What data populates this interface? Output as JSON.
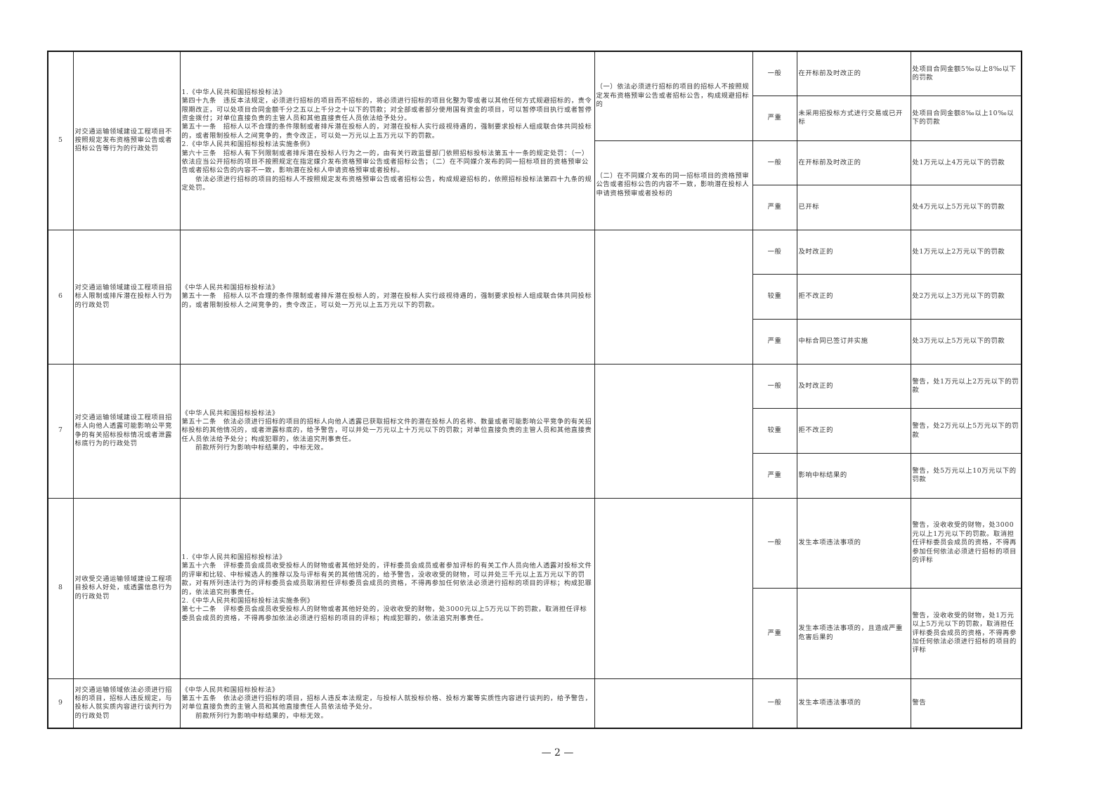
{
  "rows": [
    {
      "no": "5",
      "item": "对交通运输领域建设工程项目不按照规定发布资格预审公告或者招标公告等行为的行政处罚",
      "basis": [
        "1.《中华人民共和国招标投标法》",
        "第四十九条　违反本法规定，必须进行招标的项目而不招标的，将必须进行招标的项目化整为零或者以其他任何方式规避招标的，责令限期改正，可以处项目合同金额千分之五以上千分之十以下的罚款；对全部或者部分使用国有资金的项目，可以暂停项目执行或者暂停资金拨付；对单位直接负责的主管人员和其他直接责任人员依法给予处分。",
        "第五十一条　招标人以不合理的条件限制或者排斥潜在投标人的，对潜在投标人实行歧视待遇的，强制要求投标人组成联合体共同投标的，或者限制投标人之间竞争的，责令改正，可以处一万元以上五万元以下的罚款。",
        "2.《中华人民共和国招标投标法实施条例》",
        "第六十三条　招标人有下列限制或者排斥潜在投标人行为之一的，由有关行政监督部门依照招标投标法第五十一条的规定处罚：（一）依法应当公开招标的项目不按照规定在指定媒介发布资格预审公告或者招标公告；（二）在不同媒介发布的同一招标项目的资格预审公告或者招标公告的内容不一致，影响潜在投标人申请资格预审或者投标。",
        "　　依法必须进行招标的项目的招标人不按照规定发布资格预审公告或者招标公告，构成规避招标的，依照招标投标法第四十九条的规定处罚。"
      ],
      "circumstances": [
        {
          "text": "（一）依法必须进行招标的项目的招标人不按照规定发布资格预审公告或者招标公告，构成规避招标的",
          "levels": [
            {
              "level": "一般",
              "situation": "在开标前及时改正的",
              "penalty": "处项目合同金额5‰以上8‰以下的罚款"
            },
            {
              "level": "严重",
              "situation": "未采用招投标方式进行交易或已开标",
              "penalty": "处项目合同金额8‰以上10‰以下的罚款"
            }
          ]
        },
        {
          "text": "（二）在不同媒介发布的同一招标项目的资格预审公告或者招标公告的内容不一致，影响潜在投标人申请资格预审或者投标的",
          "levels": [
            {
              "level": "一般",
              "situation": "在开标前及时改正的",
              "penalty": "处1万元以上4万元以下的罚款"
            },
            {
              "level": "严重",
              "situation": "已开标",
              "penalty": "处4万元以上5万元以下的罚款"
            }
          ]
        }
      ]
    },
    {
      "no": "6",
      "item": "对交通运输领域建设工程项目招标人限制或排斥潜在投标人行为的行政处罚",
      "basis": [
        "《中华人民共和国招标投标法》",
        "第五十一条　招标人以不合理的条件限制或者排斥潜在投标人的，对潜在投标人实行歧视待遇的，强制要求投标人组成联合体共同投标的，或者限制投标人之间竞争的，责令改正，可以处一万元以上五万元以下的罚款。"
      ],
      "circumstances": [
        {
          "text": "",
          "levels": [
            {
              "level": "一般",
              "situation": "及时改正的",
              "penalty": "处1万元以上2万元以下的罚款"
            },
            {
              "level": "较重",
              "situation": "拒不改正的",
              "penalty": "处2万元以上3万元以下的罚款"
            },
            {
              "level": "严重",
              "situation": "中标合同已签订并实施",
              "penalty": "处3万元以上5万元以下的罚款"
            }
          ]
        }
      ]
    },
    {
      "no": "7",
      "item": "对交通运输领域建设工程项目招标人向他人透露可能影响公平竞争的有关招标投标情况或者泄露标底行为的行政处罚",
      "basis": [
        "《中华人民共和国招标投标法》",
        "第五十二条　依法必须进行招标的项目的招标人向他人透露已获取招标文件的潜在投标人的名称、数量或者可能影响公平竞争的有关招标投标的其他情况的，或者泄露标底的，给予警告，可以并处一万元以上十万元以下的罚款；对单位直接负责的主管人员和其他直接责任人员依法给予处分；构成犯罪的，依法追究刑事责任。",
        "　　前款所列行为影响中标结果的，中标无效。"
      ],
      "circumstances": [
        {
          "text": "",
          "levels": [
            {
              "level": "一般",
              "situation": "及时改正的",
              "penalty": "警告，处1万元以上2万元以下的罚款"
            },
            {
              "level": "较重",
              "situation": "拒不改正的",
              "penalty": "警告，处2万元以上5万元以下的罚款"
            },
            {
              "level": "严重",
              "situation": "影响中标结果的",
              "penalty": "警告，处5万元以上10万元以下的罚款"
            }
          ]
        }
      ]
    },
    {
      "no": "8",
      "item": "对收受交通运输领域建设工程项目投标人好处，或透露信息行为的行政处罚",
      "basis": [
        "1.《中华人民共和国招标投标法》",
        "第五十六条　评标委员会成员收受投标人的财物或者其他好处的，评标委员会成员或者参加评标的有关工作人员向他人透露对投标文件的评审和比较、中标候选人的推荐以及与评标有关的其他情况的，给予警告，没收收受的财物，可以并处三千元以上五万元以下的罚款，对有所列违法行为的评标委员会成员取消担任评标委员会成员的资格，不得再参加任何依法必须进行招标的项目的评标；构成犯罪的，依法追究刑事责任。",
        "2.《中华人民共和国招标投标法实施条例》",
        "第七十二条　评标委员会成员收受投标人的财物或者其他好处的，没收收受的财物，处3000元以上5万元以下的罚款，取消担任评标委员会成员的资格，不得再参加依法必须进行招标的项目的评标；构成犯罪的，依法追究刑事责任。"
      ],
      "circumstances": [
        {
          "text": "",
          "levels": [
            {
              "level": "一般",
              "situation": "发生本项违法事项的",
              "penalty": "警告，没收收受的财物，处3000元以上1万元以下的罚款。取消担任评标委员会成员的资格，不得再参加任何依法必须进行招标的项目的评标"
            },
            {
              "level": "严重",
              "situation": "发生本项违法事项的，且造成严重危害后果的",
              "penalty": "警告，没收收受的财物，处1万元以上5万元以下的罚款，取消担任评标委员会成员的资格，不得再参加任何依法必须进行招标的项目的评标"
            }
          ]
        }
      ]
    },
    {
      "no": "9",
      "item": "对交通运输领域依法必须进行招标的项目，招标人违反规定，与投标人就实质内容进行谈判行为的行政处罚",
      "basis": [
        "《中华人民共和国招标投标法》",
        "第五十五条　依法必须进行招标的项目，招标人违反本法规定，与投标人就投标价格、投标方案等实质性内容进行谈判的，给予警告，对单位直接负责的主管人员和其他直接责任人员依法给予处分。",
        "　　前款所列行为影响中标结果的，中标无效。"
      ],
      "circumstances": [
        {
          "text": "",
          "levels": [
            {
              "level": "一般",
              "situation": "发生本项违法事项的",
              "penalty": "警告"
            }
          ]
        }
      ]
    }
  ],
  "footer": {
    "page_number": "— 2 —"
  }
}
